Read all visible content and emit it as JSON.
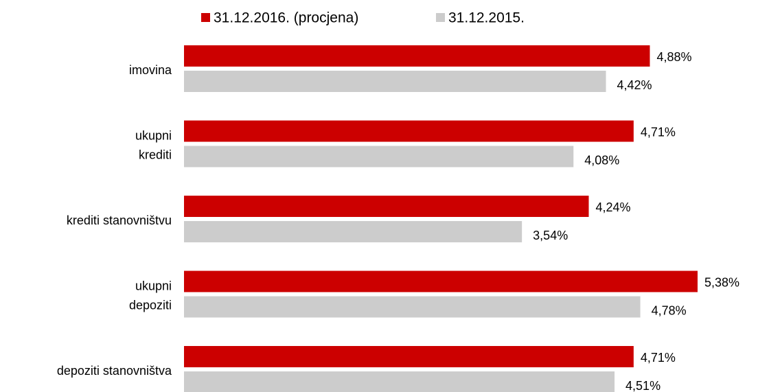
{
  "chart_data": {
    "type": "barh",
    "categories": [
      [
        "imovina"
      ],
      [
        "ukupni",
        "krediti"
      ],
      [
        "krediti stanovništvu"
      ],
      [
        "ukupni",
        "depoziti"
      ],
      [
        "depoziti stanovništva"
      ]
    ],
    "series": [
      {
        "name": "31.12.2016. (procjena)",
        "color": "#cc0000",
        "values": [
          4.88,
          4.71,
          4.24,
          5.38,
          4.71
        ],
        "value_labels": [
          "4,88%",
          "4,71%",
          "4,24%",
          "5,38%",
          "4,71%"
        ]
      },
      {
        "name": "31.12.2015.",
        "color": "#cccccc",
        "values": [
          4.42,
          4.08,
          3.54,
          4.78,
          4.51
        ],
        "value_labels": [
          "4,42%",
          "4,08%",
          "3,54%",
          "4,78%",
          "4,51%"
        ]
      }
    ],
    "legend": "top"
  }
}
